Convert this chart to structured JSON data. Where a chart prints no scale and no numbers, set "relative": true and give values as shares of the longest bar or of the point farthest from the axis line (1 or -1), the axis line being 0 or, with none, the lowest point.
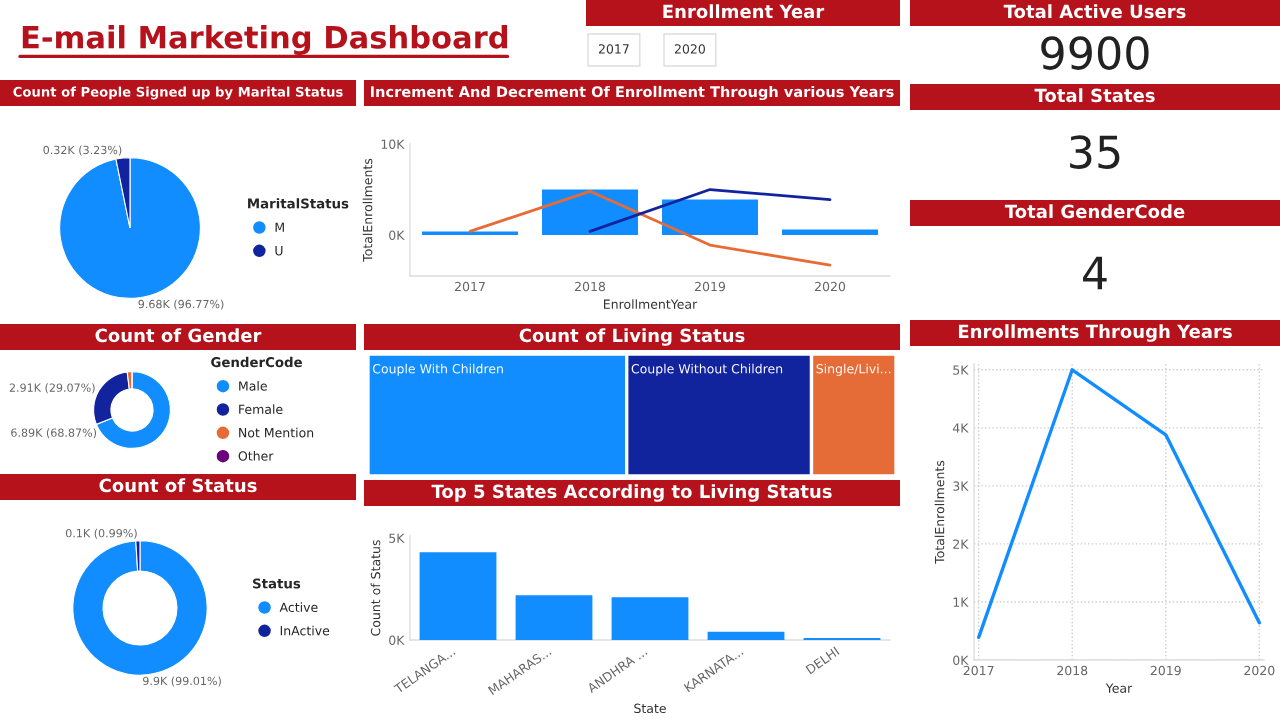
{
  "chart_data": [
    {
      "type": "other",
      "title": "E-mail Marketing Dashboard"
    },
    {
      "type": "other",
      "title": "Enrollment Year",
      "annotations": [
        "2017",
        "2020"
      ]
    },
    {
      "type": "other",
      "title": "Total Active Users",
      "annotations": [
        "9900"
      ]
    },
    {
      "type": "pie",
      "title": "Count of People Signed up by Marital Status",
      "legend_title": "MaritalStatus",
      "legend": "right",
      "categories": [
        "M",
        "U"
      ],
      "values": [
        9680,
        320
      ],
      "colors": [
        "#118dff",
        "#12239e"
      ],
      "value_labels": [
        "9.68K (96.77%)",
        "0.32K (3.23%)"
      ]
    },
    {
      "type": "bar",
      "title": "Increment And Decrement Of Enrollment Through various Years",
      "xlabel": "EnrollmentYear",
      "ylabel": "TotalEnrollments",
      "categories": [
        "2017",
        "2018",
        "2019",
        "2020"
      ],
      "ylim": [
        -4500,
        10000
      ],
      "yticks": [
        {
          "value": 0,
          "label": "0K"
        },
        {
          "value": 10000,
          "label": "10K"
        }
      ],
      "series": [
        {
          "type": "bar",
          "color": "#118dff",
          "values": [
            400,
            5000,
            3900,
            600
          ]
        },
        {
          "type": "line",
          "color": "#e66c37",
          "values": [
            400,
            4800,
            -1100,
            -3300
          ]
        },
        {
          "type": "line",
          "color": "#12239e",
          "values": [
            null,
            400,
            5000,
            3900
          ]
        }
      ]
    },
    {
      "type": "other",
      "title": "Total States",
      "annotations": [
        "35"
      ]
    },
    {
      "type": "other",
      "title": "Total GenderCode",
      "annotations": [
        "4"
      ]
    },
    {
      "type": "donut",
      "title": "Count of Gender",
      "legend_title": "GenderCode",
      "legend": "right",
      "categories": [
        "Male",
        "Female",
        "Not Mention",
        "Other"
      ],
      "values": [
        6890,
        2910,
        200,
        0
      ],
      "colors": [
        "#118dff",
        "#12239e",
        "#e66c37",
        "#6b007b"
      ],
      "value_labels": [
        "6.89K (68.87%)",
        "2.91K (29.07%)",
        null,
        null
      ]
    },
    {
      "type": "bar",
      "title": "Count of Living Status",
      "orientation": "horizontal",
      "stacked": true,
      "relative": true,
      "categories": [
        null
      ],
      "series": [
        {
          "name": "Couple With Children",
          "color": "#118dff",
          "values": [
            0.49
          ]
        },
        {
          "name": "Couple Without Children",
          "color": "#12239e",
          "values": [
            0.35
          ]
        },
        {
          "name": "Single/Livi...",
          "color": "#e66c37",
          "values": [
            0.16
          ]
        }
      ]
    },
    {
      "type": "line",
      "title": "Enrollments Through Years",
      "xlabel": "Year",
      "ylabel": "TotalEnrollments",
      "categories": [
        "2017",
        "2018",
        "2019",
        "2020"
      ],
      "values": [
        390,
        5000,
        3880,
        640
      ],
      "color": "#118dff",
      "ylim": [
        0,
        5100
      ],
      "yticks": [
        {
          "value": 0,
          "label": "0K"
        },
        {
          "value": 1000,
          "label": "1K"
        },
        {
          "value": 2000,
          "label": "2K"
        },
        {
          "value": 3000,
          "label": "3K"
        },
        {
          "value": 4000,
          "label": "4K"
        },
        {
          "value": 5000,
          "label": "5K"
        }
      ],
      "grid": true
    },
    {
      "type": "donut",
      "title": "Count of Status",
      "legend_title": "Status",
      "legend": "right",
      "categories": [
        "Active",
        "InActive"
      ],
      "values": [
        9900,
        100
      ],
      "colors": [
        "#118dff",
        "#12239e"
      ],
      "value_labels": [
        "9.9K (99.01%)",
        "0.1K (0.99%)"
      ]
    },
    {
      "type": "bar",
      "title": "Top 5 States According to Living Status",
      "xlabel": "State",
      "ylabel": "Count of Status",
      "categories": [
        "TELANGA...",
        "MAHARAS...",
        "ANDHRA ...",
        "KARNATA...",
        "DELHI"
      ],
      "values": [
        4300,
        2200,
        2100,
        400,
        100
      ],
      "color": "#118dff",
      "ylim": [
        0,
        5100
      ],
      "yticks": [
        {
          "value": 0,
          "label": "0K"
        },
        {
          "value": 5000,
          "label": "5K"
        }
      ]
    }
  ]
}
